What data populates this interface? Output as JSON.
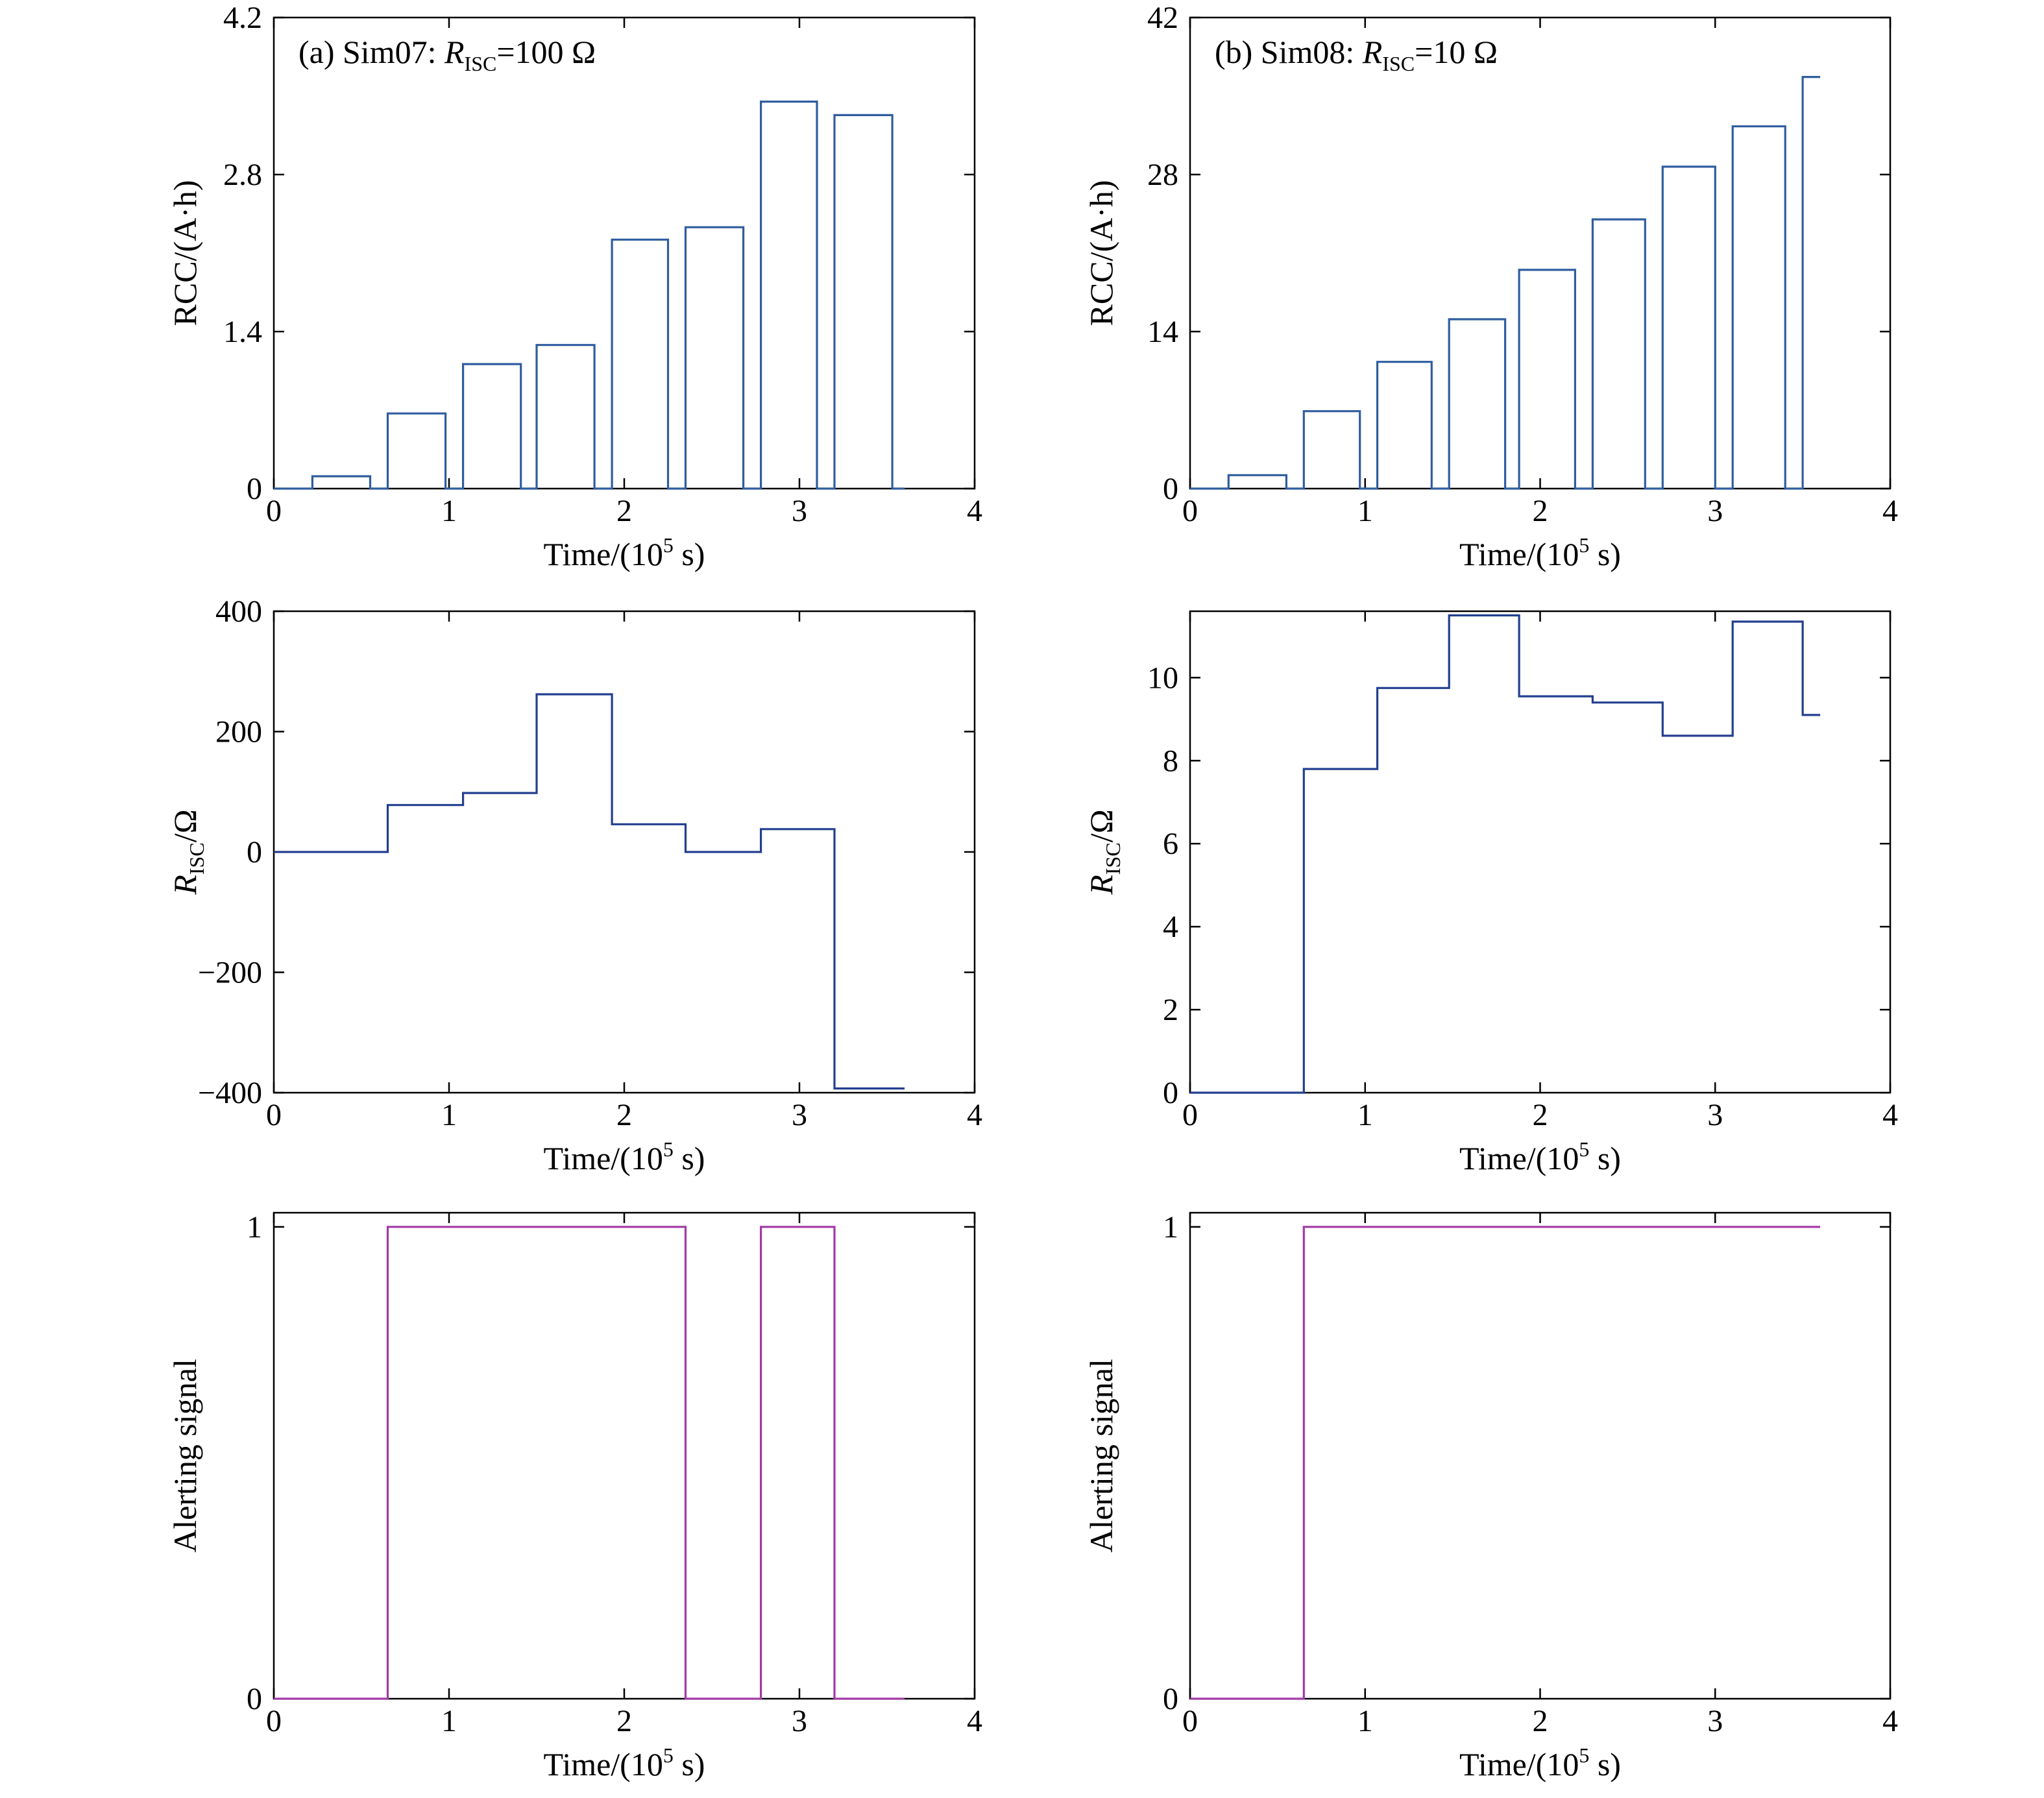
{
  "chart_data": [
    {
      "id": "a-rcc",
      "type": "line",
      "title_prefix": "(a) Sim07: ",
      "title_var": "R",
      "title_sub": "ISC",
      "title_suffix": "=100 Ω",
      "xlabel_prefix": "Time/(10",
      "xlabel_sup": "5",
      "xlabel_suffix": " s)",
      "ylabel_main": "RCC/(A·h)",
      "xlim": [
        0,
        4
      ],
      "ylim": [
        0,
        4.2
      ],
      "xticks": [
        "0",
        "1",
        "2",
        "3",
        "4"
      ],
      "yticks": [
        "0",
        "1.4",
        "2.8",
        "4.2"
      ],
      "xtick_values": [
        0,
        1,
        2,
        3,
        4
      ],
      "ytick_values": [
        0,
        1.4,
        2.8,
        4.2
      ],
      "color": "#2f5d9f",
      "series": [
        {
          "x": [
            0,
            0.22,
            0.22,
            0.55,
            0.55,
            0.65,
            0.65,
            0.98,
            0.98,
            1.08,
            1.08,
            1.41,
            1.41,
            1.5,
            1.5,
            1.83,
            1.83,
            1.93,
            1.93,
            2.25,
            2.25,
            2.35,
            2.35,
            2.68,
            2.68,
            2.78,
            2.78,
            3.1,
            3.1,
            3.2,
            3.2,
            3.53,
            3.53,
            3.6
          ],
          "y": [
            0,
            0,
            0.11,
            0.11,
            0,
            0,
            0.67,
            0.67,
            0,
            0,
            1.11,
            1.11,
            0,
            0,
            1.28,
            1.28,
            0,
            0,
            2.22,
            2.22,
            0,
            0,
            2.33,
            2.33,
            0,
            0,
            3.45,
            3.45,
            0,
            0,
            3.33,
            3.33,
            0,
            0
          ]
        }
      ]
    },
    {
      "id": "b-rcc",
      "type": "line",
      "title_prefix": "(b) Sim08: ",
      "title_var": "R",
      "title_sub": "ISC",
      "title_suffix": "=10 Ω",
      "xlabel_prefix": "Time/(10",
      "xlabel_sup": "5",
      "xlabel_suffix": " s)",
      "ylabel_main": "RCC/(A·h)",
      "xlim": [
        0,
        4
      ],
      "ylim": [
        0,
        42
      ],
      "xticks": [
        "0",
        "1",
        "2",
        "3",
        "4"
      ],
      "yticks": [
        "0",
        "14",
        "28",
        "42"
      ],
      "xtick_values": [
        0,
        1,
        2,
        3,
        4
      ],
      "ytick_values": [
        0,
        14,
        28,
        42
      ],
      "color": "#2f5d9f",
      "series": [
        {
          "x": [
            0,
            0.22,
            0.22,
            0.55,
            0.55,
            0.65,
            0.65,
            0.97,
            0.97,
            1.07,
            1.07,
            1.38,
            1.38,
            1.48,
            1.48,
            1.8,
            1.8,
            1.88,
            1.88,
            2.2,
            2.2,
            2.3,
            2.3,
            2.6,
            2.6,
            2.7,
            2.7,
            3.0,
            3.0,
            3.1,
            3.1,
            3.4,
            3.4,
            3.5,
            3.5,
            3.6
          ],
          "y": [
            0,
            0,
            1.2,
            1.2,
            0,
            0,
            6.9,
            6.9,
            0,
            0,
            11.3,
            11.3,
            0,
            0,
            15.1,
            15.1,
            0,
            0,
            19.5,
            19.5,
            0,
            0,
            24.0,
            24.0,
            0,
            0,
            28.7,
            28.7,
            0,
            0,
            32.3,
            32.3,
            0,
            0,
            36.7,
            36.7
          ]
        }
      ]
    },
    {
      "id": "a-risc",
      "type": "line",
      "xlabel_prefix": "Time/(10",
      "xlabel_sup": "5",
      "xlabel_suffix": " s)",
      "ylabel_var": "R",
      "ylabel_sub": "ISC",
      "ylabel_suffix": "/Ω",
      "xlim": [
        0,
        4
      ],
      "ylim": [
        -400,
        400
      ],
      "xticks": [
        "0",
        "1",
        "2",
        "3",
        "4"
      ],
      "yticks": [
        "−400",
        "−200",
        "0",
        "200",
        "400"
      ],
      "xtick_values": [
        0,
        1,
        2,
        3,
        4
      ],
      "ytick_values": [
        -400,
        -200,
        0,
        200,
        400
      ],
      "color": "#233f8f",
      "series": [
        {
          "x": [
            0,
            0.65,
            0.65,
            1.08,
            1.08,
            1.5,
            1.5,
            1.93,
            1.93,
            2.35,
            2.35,
            2.78,
            2.78,
            3.2,
            3.2,
            3.6
          ],
          "y": [
            0,
            0,
            78,
            78,
            98,
            98,
            262,
            262,
            46,
            46,
            0,
            0,
            38,
            38,
            -393,
            -393
          ]
        }
      ]
    },
    {
      "id": "b-risc",
      "type": "line",
      "xlabel_prefix": "Time/(10",
      "xlabel_sup": "5",
      "xlabel_suffix": " s)",
      "ylabel_var": "R",
      "ylabel_sub": "ISC",
      "ylabel_suffix": "/Ω",
      "xlim": [
        0,
        4
      ],
      "ylim": [
        0,
        11.6
      ],
      "xticks": [
        "0",
        "1",
        "2",
        "3",
        "4"
      ],
      "yticks": [
        "0",
        "2",
        "4",
        "6",
        "8",
        "10"
      ],
      "xtick_values": [
        0,
        1,
        2,
        3,
        4
      ],
      "ytick_values": [
        0,
        2,
        4,
        6,
        8,
        10
      ],
      "color": "#233f8f",
      "series": [
        {
          "x": [
            0,
            0.65,
            0.65,
            1.07,
            1.07,
            1.48,
            1.48,
            1.88,
            1.88,
            2.3,
            2.3,
            2.7,
            2.7,
            3.1,
            3.1,
            3.5,
            3.5,
            3.6
          ],
          "y": [
            0,
            0,
            7.8,
            7.8,
            9.75,
            9.75,
            11.5,
            11.5,
            9.55,
            9.55,
            9.4,
            9.4,
            8.6,
            8.6,
            11.35,
            11.35,
            9.1,
            9.1
          ]
        }
      ]
    },
    {
      "id": "a-alert",
      "type": "line",
      "xlabel_prefix": "Time/(10",
      "xlabel_sup": "5",
      "xlabel_suffix": " s)",
      "ylabel_main": "Alerting signal",
      "xlim": [
        0,
        4
      ],
      "ylim": [
        0,
        1.03
      ],
      "xticks": [
        "0",
        "1",
        "2",
        "3",
        "4"
      ],
      "yticks": [
        "0",
        "1"
      ],
      "xtick_values": [
        0,
        1,
        2,
        3,
        4
      ],
      "ytick_values": [
        0,
        1
      ],
      "color": "#a23aa6",
      "series": [
        {
          "x": [
            0,
            0.65,
            0.65,
            2.35,
            2.35,
            2.78,
            2.78,
            3.2,
            3.2,
            3.6
          ],
          "y": [
            0,
            0,
            1,
            1,
            0,
            0,
            1,
            1,
            0,
            0
          ]
        }
      ]
    },
    {
      "id": "b-alert",
      "type": "line",
      "xlabel_prefix": "Time/(10",
      "xlabel_sup": "5",
      "xlabel_suffix": " s)",
      "ylabel_main": "Alerting signal",
      "xlim": [
        0,
        4
      ],
      "ylim": [
        0,
        1.03
      ],
      "xticks": [
        "0",
        "1",
        "2",
        "3",
        "4"
      ],
      "yticks": [
        "0",
        "1"
      ],
      "xtick_values": [
        0,
        1,
        2,
        3,
        4
      ],
      "ytick_values": [
        0,
        1
      ],
      "color": "#a23aa6",
      "series": [
        {
          "x": [
            0,
            0.65,
            0.65,
            3.6
          ],
          "y": [
            0,
            0,
            1,
            1
          ]
        }
      ]
    }
  ]
}
